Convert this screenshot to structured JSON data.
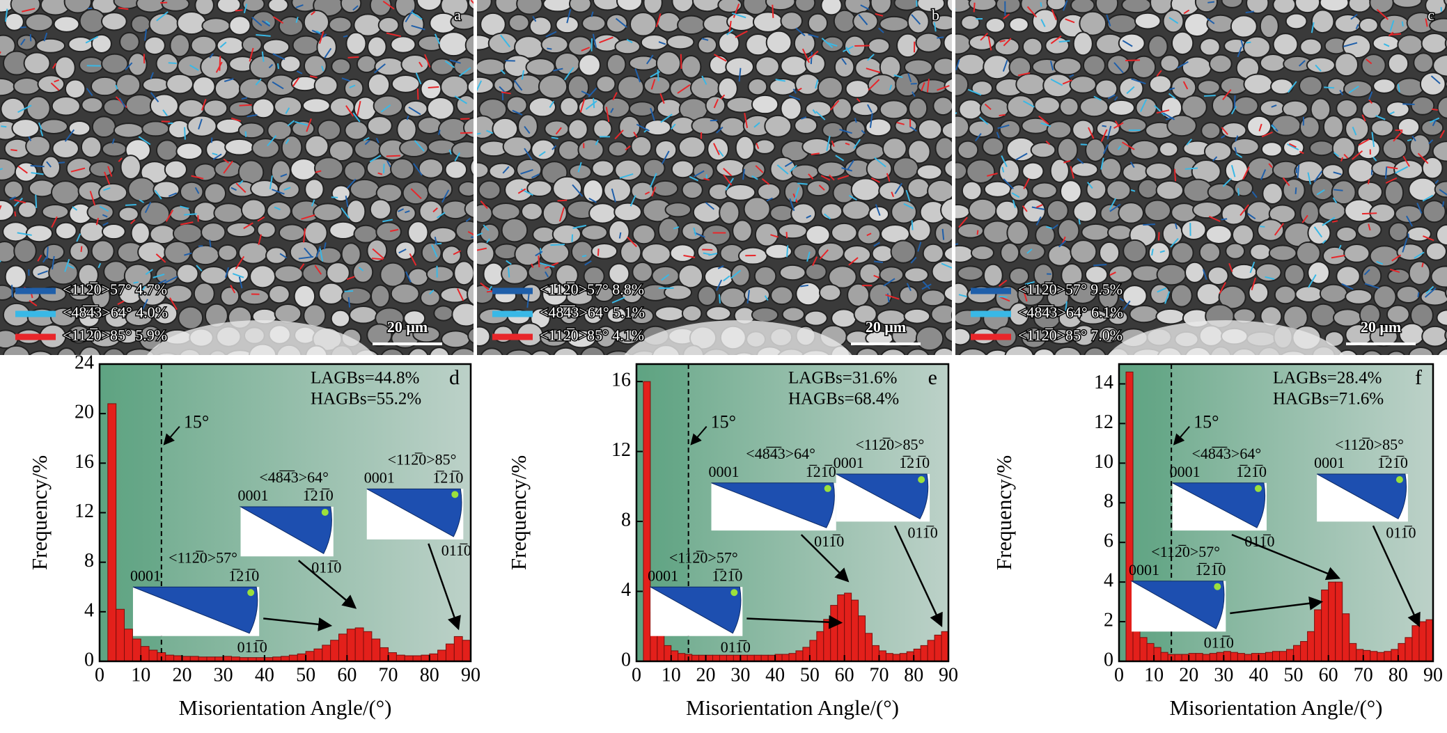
{
  "micrographs": [
    {
      "label": "a",
      "scale_bar": "20 μm",
      "legend": [
        {
          "name": "<112̅0>57° 4.7%",
          "color": "#1f5faa"
        },
        {
          "name": "<48̅4̅3>64° 4.0%",
          "color": "#39b8e6"
        },
        {
          "name": "<112̅0>85° 5.9%",
          "color": "#e8262a"
        }
      ]
    },
    {
      "label": "b",
      "scale_bar": "20 μm",
      "legend": [
        {
          "name": "<112̅0>57° 8.8%",
          "color": "#1f5faa"
        },
        {
          "name": "<48̅4̅3>64° 5.1%",
          "color": "#39b8e6"
        },
        {
          "name": "<112̅0>85° 4.1%",
          "color": "#e8262a"
        }
      ]
    },
    {
      "label": "c",
      "scale_bar": "20 μm",
      "legend": [
        {
          "name": "<112̅0>57° 9.5%",
          "color": "#1f5faa"
        },
        {
          "name": "<48̅4̅3>64° 6.1%",
          "color": "#39b8e6"
        },
        {
          "name": "<112̅0>85° 7.0%",
          "color": "#e8262a"
        }
      ]
    }
  ],
  "chart_data": [
    {
      "type": "histogram",
      "panel": "d",
      "xlabel": "Misorientation Angle/(°)",
      "ylabel": "Frequency/%",
      "lagbs": "LAGBs=44.8%",
      "hagbs": "HAGBs=55.2%",
      "threshold": {
        "value": 15,
        "label": "15°"
      },
      "color": "#e3201b",
      "bins": [
        2,
        4,
        6,
        8,
        10,
        12,
        14,
        16,
        18,
        20,
        22,
        24,
        26,
        28,
        30,
        32,
        34,
        36,
        38,
        40,
        42,
        44,
        46,
        48,
        50,
        52,
        54,
        56,
        58,
        60,
        62,
        64,
        66,
        68,
        70,
        72,
        74,
        76,
        78,
        80,
        82,
        84,
        86,
        88,
        90
      ],
      "values": [
        20.8,
        4.2,
        2.6,
        1.8,
        1.2,
        0.9,
        0.7,
        0.5,
        0.45,
        0.4,
        0.4,
        0.35,
        0.35,
        0.35,
        0.4,
        0.35,
        0.3,
        0.3,
        0.3,
        0.3,
        0.35,
        0.4,
        0.5,
        0.6,
        0.8,
        1.0,
        1.3,
        1.7,
        2.2,
        2.6,
        2.7,
        2.4,
        1.8,
        1.1,
        0.7,
        0.5,
        0.45,
        0.45,
        0.5,
        0.6,
        0.9,
        1.4,
        2.0,
        1.7
      ],
      "xlim": [
        0,
        90
      ],
      "xticks": [
        0,
        10,
        20,
        30,
        40,
        50,
        60,
        70,
        80,
        90
      ],
      "ylim": [
        0,
        24
      ],
      "yticks": [
        0,
        4,
        8,
        12,
        16,
        20,
        24
      ],
      "insets": [
        {
          "title": "<112̅0>57°",
          "top_left": "0001",
          "top_right": "1̅21̅0",
          "bottom": "011̅0"
        },
        {
          "title": "<48̅4̅3>64°",
          "top_left": "0001",
          "top_right": "1̅21̅0",
          "bottom": "011̅0"
        },
        {
          "title": "<112̅0>85°",
          "top_left": "0001",
          "top_right": "1̅21̅0",
          "bottom": "011̅0"
        }
      ]
    },
    {
      "type": "histogram",
      "panel": "e",
      "xlabel": "Misorientation Angle/(°)",
      "ylabel": "Frequency/%",
      "lagbs": "LAGBs=31.6%",
      "hagbs": "HAGBs=68.4%",
      "threshold": {
        "value": 15,
        "label": "15°"
      },
      "color": "#e3201b",
      "bins": [
        2,
        4,
        6,
        8,
        10,
        12,
        14,
        16,
        18,
        20,
        22,
        24,
        26,
        28,
        30,
        32,
        34,
        36,
        38,
        40,
        42,
        44,
        46,
        48,
        50,
        52,
        54,
        56,
        58,
        60,
        62,
        64,
        66,
        68,
        70,
        72,
        74,
        76,
        78,
        80,
        82,
        84,
        86,
        88,
        90
      ],
      "values": [
        16.0,
        2.8,
        1.6,
        0.9,
        0.6,
        0.45,
        0.4,
        0.35,
        0.35,
        0.35,
        0.35,
        0.35,
        0.35,
        0.35,
        0.35,
        0.35,
        0.35,
        0.35,
        0.35,
        0.4,
        0.4,
        0.45,
        0.6,
        0.8,
        1.2,
        1.7,
        2.4,
        3.2,
        3.8,
        3.9,
        3.5,
        2.6,
        1.6,
        0.9,
        0.6,
        0.45,
        0.4,
        0.45,
        0.55,
        0.7,
        0.9,
        1.2,
        1.5,
        1.7
      ],
      "xlim": [
        0,
        90
      ],
      "xticks": [
        0,
        10,
        20,
        30,
        40,
        50,
        60,
        70,
        80,
        90
      ],
      "ylim": [
        0,
        17
      ],
      "yticks": [
        0,
        4,
        8,
        12,
        16
      ],
      "insets": [
        {
          "title": "<112̅0>57°",
          "top_left": "0001",
          "top_right": "1̅21̅0",
          "bottom": "011̅0"
        },
        {
          "title": "<48̅4̅3>64°",
          "top_left": "0001",
          "top_right": "1̅21̅0",
          "bottom": "011̅0"
        },
        {
          "title": "<112̅0>85°",
          "top_left": "0001",
          "top_right": "1̅21̅0",
          "bottom": "011̅0"
        }
      ]
    },
    {
      "type": "histogram",
      "panel": "f",
      "xlabel": "Misorientation Angle/(°)",
      "ylabel": "Frequency/%",
      "lagbs": "LAGBs=28.4%",
      "hagbs": "HAGBs=71.6%",
      "threshold": {
        "value": 15,
        "label": "15°"
      },
      "color": "#e3201b",
      "bins": [
        2,
        4,
        6,
        8,
        10,
        12,
        14,
        16,
        18,
        20,
        22,
        24,
        26,
        28,
        30,
        32,
        34,
        36,
        38,
        40,
        42,
        44,
        46,
        48,
        50,
        52,
        54,
        56,
        58,
        60,
        62,
        64,
        66,
        68,
        70,
        72,
        74,
        76,
        78,
        80,
        82,
        84,
        86,
        88,
        90
      ],
      "values": [
        14.6,
        2.2,
        1.2,
        0.9,
        0.7,
        0.45,
        0.35,
        0.35,
        0.35,
        0.4,
        0.4,
        0.35,
        0.4,
        0.45,
        0.5,
        0.45,
        0.4,
        0.35,
        0.4,
        0.4,
        0.45,
        0.5,
        0.5,
        0.6,
        0.8,
        1.0,
        1.5,
        2.6,
        3.6,
        4.0,
        4.0,
        2.4,
        0.9,
        0.6,
        0.55,
        0.5,
        0.45,
        0.5,
        0.6,
        0.9,
        1.2,
        1.8,
        2.0,
        2.1
      ],
      "xlim": [
        0,
        90
      ],
      "xticks": [
        0,
        10,
        20,
        30,
        40,
        50,
        60,
        70,
        80,
        90
      ],
      "ylim": [
        0,
        15
      ],
      "yticks": [
        0,
        2,
        4,
        6,
        8,
        10,
        12,
        14
      ],
      "insets": [
        {
          "title": "<112̅0>57°",
          "top_left": "0001",
          "top_right": "1̅21̅0",
          "bottom": "011̅0"
        },
        {
          "title": "<48̅4̅3>64°",
          "top_left": "0001",
          "top_right": "1̅21̅0",
          "bottom": "011̅0"
        },
        {
          "title": "<112̅0>85°",
          "top_left": "0001",
          "top_right": "1̅21̅0",
          "bottom": "011̅0"
        }
      ]
    }
  ]
}
